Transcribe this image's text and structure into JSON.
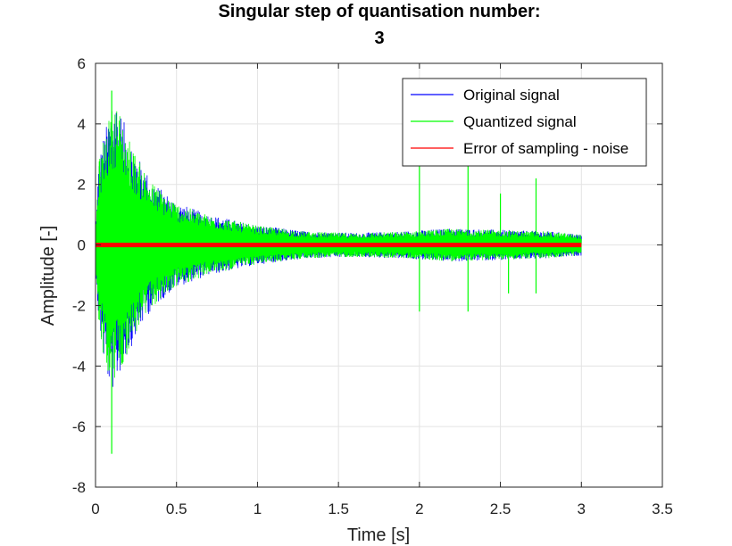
{
  "chart_data": {
    "type": "line",
    "title_line1": "Singular step of quantisation number:",
    "title_line2": "3",
    "xlabel": "Time [s]",
    "ylabel": "Amplitude [-]",
    "xlim": [
      0,
      3.5
    ],
    "ylim": [
      -8,
      6
    ],
    "xticks": [
      0,
      0.5,
      1,
      1.5,
      2,
      2.5,
      3,
      3.5
    ],
    "xtick_labels": [
      "0",
      "0.5",
      "1",
      "1.5",
      "2",
      "2.5",
      "3",
      "3.5"
    ],
    "yticks": [
      -8,
      -6,
      -4,
      -2,
      0,
      2,
      4,
      6
    ],
    "ytick_labels": [
      "-8",
      "-6",
      "-4",
      "-2",
      "0",
      "2",
      "4",
      "6"
    ],
    "grid": true,
    "legend_position": "top-right",
    "signal_duration": 3.0,
    "envelope": {
      "t": [
        0,
        0.02,
        0.05,
        0.08,
        0.1,
        0.13,
        0.18,
        0.25,
        0.35,
        0.5,
        0.7,
        1.0,
        1.3,
        1.6,
        1.9,
        2.2,
        2.5,
        2.8,
        3.0
      ],
      "upper": [
        0.5,
        2.8,
        3.6,
        4.2,
        4.6,
        4.8,
        4.0,
        3.0,
        2.1,
        1.4,
        1.0,
        0.65,
        0.45,
        0.4,
        0.45,
        0.55,
        0.5,
        0.45,
        0.35
      ],
      "lower": [
        -0.5,
        -2.7,
        -3.8,
        -4.6,
        -4.9,
        -4.5,
        -3.9,
        -3.0,
        -2.1,
        -1.4,
        -1.0,
        -0.65,
        -0.45,
        -0.4,
        -0.45,
        -0.55,
        -0.5,
        -0.45,
        -0.35
      ]
    },
    "spikes": [
      {
        "t": 0.1,
        "y": 5.1
      },
      {
        "t": 0.1,
        "y": -6.9
      },
      {
        "t": 2.0,
        "y": 2.7
      },
      {
        "t": 2.0,
        "y": -2.2
      },
      {
        "t": 2.3,
        "y": 2.7
      },
      {
        "t": 2.3,
        "y": -2.2
      },
      {
        "t": 2.5,
        "y": 1.7
      },
      {
        "t": 2.55,
        "y": -1.6
      },
      {
        "t": 2.72,
        "y": 2.2
      },
      {
        "t": 2.72,
        "y": -1.6
      }
    ],
    "series": [
      {
        "name": "Original signal",
        "color": "#0000ff"
      },
      {
        "name": "Quantized signal",
        "color": "#00ff00"
      },
      {
        "name": "Error of sampling - noise",
        "color": "#ff0000",
        "values_constant": 0
      }
    ]
  }
}
